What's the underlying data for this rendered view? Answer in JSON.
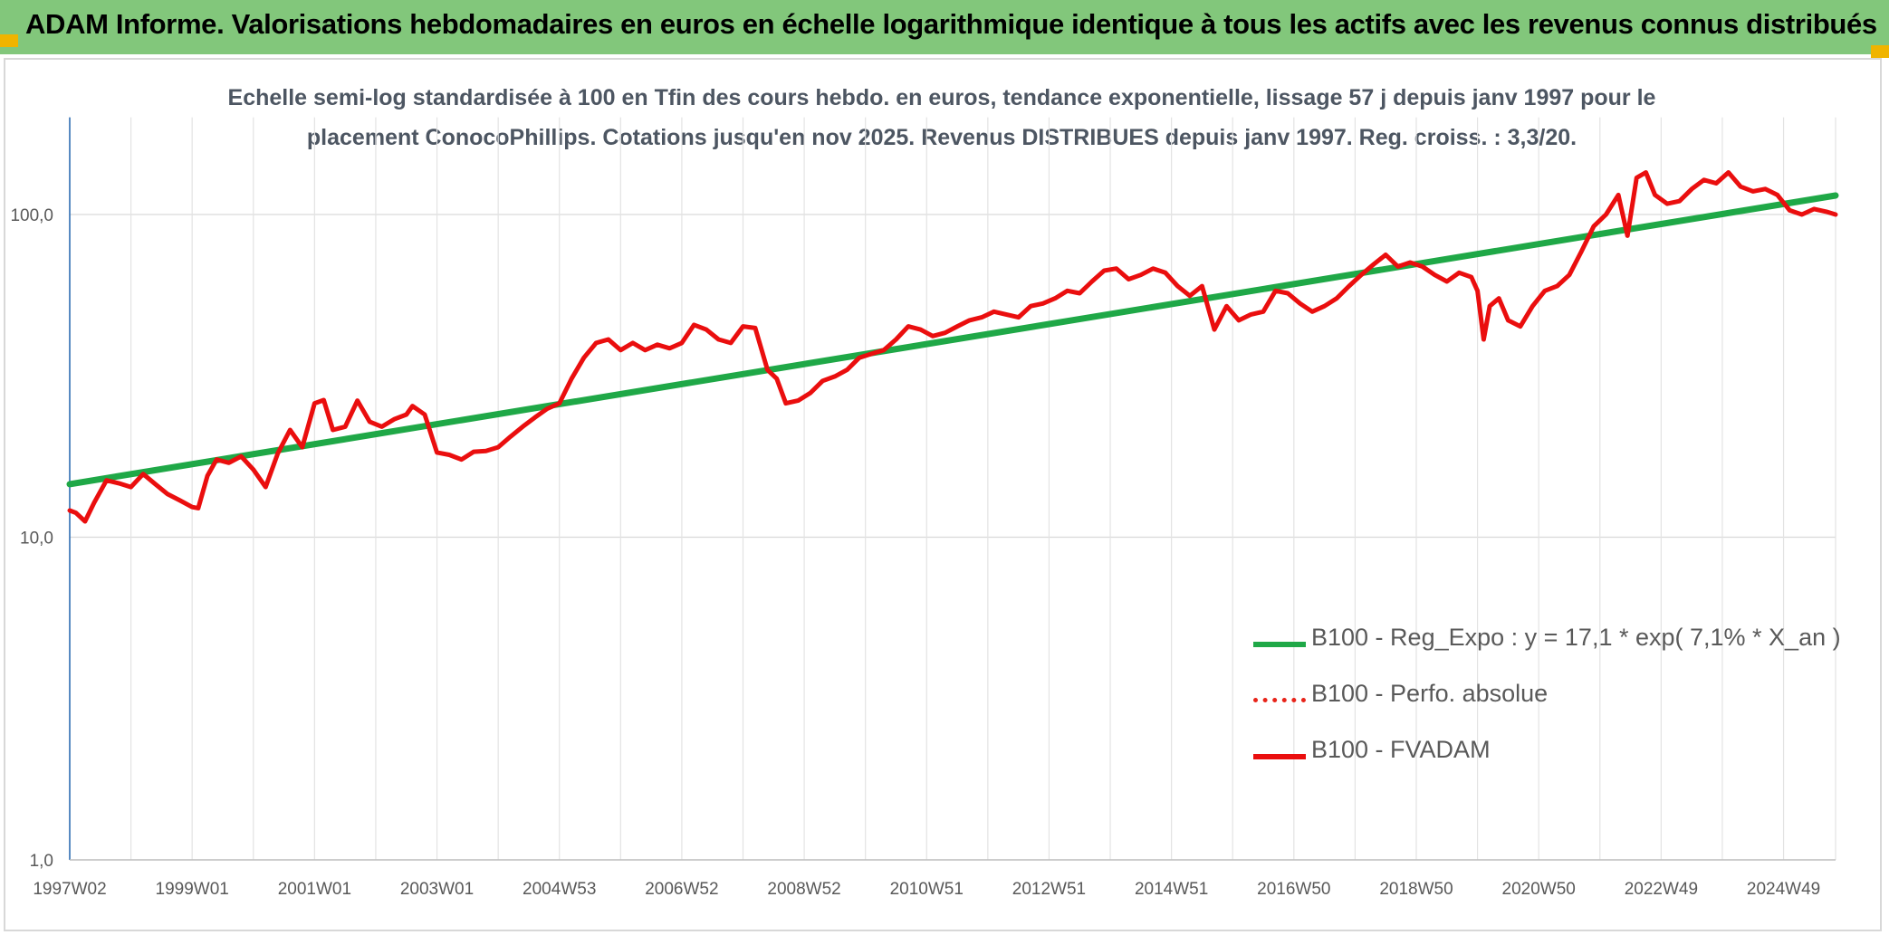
{
  "header": {
    "title": "ADAM Informe. Valorisations hebdomadaires en euros en échelle logarithmique identique à tous les actifs avec les revenus connus distribués",
    "background_color": "#82c77b"
  },
  "chart_data": {
    "type": "line",
    "title": "Echelle semi-log standardisée à 100 en Tfin des cours hebdo. en euros, tendance exponentielle, lissage 57 j depuis janv 1997 pour le placement ConocoPhillips. Cotations jusqu'en nov 2025. Revenus DISTRIBUES depuis janv 1997. Reg. croiss. : 3,3/20.",
    "title_lines": [
      "Echelle semi-log standardisée à 100 en Tfin des cours hebdo. en euros, tendance exponentielle, lissage 57 j depuis janv 1997 pour le",
      "placement ConocoPhillips. Cotations jusqu'en nov 2025. Revenus DISTRIBUES depuis janv 1997. Reg. croiss. : 3,3/20."
    ],
    "y_scale": "log",
    "ylim": [
      1,
      200
    ],
    "y_ticks": [
      {
        "value": 1,
        "label": "1,0"
      },
      {
        "value": 10,
        "label": "10,0"
      },
      {
        "value": 100,
        "label": "100,0"
      }
    ],
    "xlim": [
      1997.0,
      2025.85
    ],
    "x_ticks": [
      {
        "x": 1997.0,
        "label": "1997W02"
      },
      {
        "x": 1999.0,
        "label": "1999W01"
      },
      {
        "x": 2001.0,
        "label": "2001W01"
      },
      {
        "x": 2003.0,
        "label": "2003W01"
      },
      {
        "x": 2005.0,
        "label": "2004W53"
      },
      {
        "x": 2007.0,
        "label": "2006W52"
      },
      {
        "x": 2009.0,
        "label": "2008W52"
      },
      {
        "x": 2011.0,
        "label": "2010W51"
      },
      {
        "x": 2013.0,
        "label": "2012W51"
      },
      {
        "x": 2015.0,
        "label": "2014W51"
      },
      {
        "x": 2017.0,
        "label": "2016W50"
      },
      {
        "x": 2019.0,
        "label": "2018W50"
      },
      {
        "x": 2021.0,
        "label": "2020W50"
      },
      {
        "x": 2023.0,
        "label": "2022W49"
      },
      {
        "x": 2025.0,
        "label": "2024W49"
      }
    ],
    "grid": "vertical and horizontal",
    "legend_position": "bottom-right",
    "series": [
      {
        "name": "B100 - Reg_Expo : y = 17,1 * exp( 7,1% *  X_an )",
        "color": "#1fa847",
        "style": "solid",
        "x": [
          1997.0,
          2025.85
        ],
        "y": [
          14.6,
          114.5
        ]
      },
      {
        "name": "B100 - Perfo. absolue",
        "color": "#e8241a",
        "style": "dotted",
        "x": [],
        "y": []
      },
      {
        "name": "B100 - FVADAM",
        "color": "#ea0e0e",
        "style": "solid",
        "x": [
          1997.0,
          1997.1,
          1997.25,
          1997.4,
          1997.6,
          1997.8,
          1998.0,
          1998.2,
          1998.4,
          1998.6,
          1998.8,
          1999.0,
          1999.1,
          1999.25,
          1999.4,
          1999.6,
          1999.8,
          2000.0,
          2000.2,
          2000.4,
          2000.6,
          2000.8,
          2001.0,
          2001.15,
          2001.3,
          2001.5,
          2001.7,
          2001.9,
          2002.1,
          2002.3,
          2002.5,
          2002.6,
          2002.8,
          2003.0,
          2003.2,
          2003.4,
          2003.6,
          2003.8,
          2004.0,
          2004.2,
          2004.4,
          2004.6,
          2004.8,
          2005.0,
          2005.2,
          2005.4,
          2005.6,
          2005.8,
          2006.0,
          2006.2,
          2006.4,
          2006.6,
          2006.8,
          2007.0,
          2007.2,
          2007.4,
          2007.6,
          2007.8,
          2008.0,
          2008.2,
          2008.4,
          2008.55,
          2008.7,
          2008.9,
          2009.1,
          2009.3,
          2009.5,
          2009.7,
          2009.9,
          2010.1,
          2010.3,
          2010.5,
          2010.7,
          2010.9,
          2011.1,
          2011.3,
          2011.5,
          2011.7,
          2011.9,
          2012.1,
          2012.3,
          2012.5,
          2012.7,
          2012.9,
          2013.1,
          2013.3,
          2013.5,
          2013.7,
          2013.9,
          2014.1,
          2014.3,
          2014.5,
          2014.7,
          2014.9,
          2015.1,
          2015.3,
          2015.5,
          2015.7,
          2015.9,
          2016.1,
          2016.3,
          2016.5,
          2016.7,
          2016.9,
          2017.1,
          2017.3,
          2017.5,
          2017.7,
          2017.9,
          2018.1,
          2018.3,
          2018.5,
          2018.7,
          2018.9,
          2019.1,
          2019.3,
          2019.5,
          2019.7,
          2019.9,
          2020.0,
          2020.1,
          2020.2,
          2020.35,
          2020.5,
          2020.7,
          2020.9,
          2021.1,
          2021.3,
          2021.5,
          2021.7,
          2021.9,
          2022.1,
          2022.3,
          2022.45,
          2022.6,
          2022.75,
          2022.9,
          2023.1,
          2023.3,
          2023.5,
          2023.7,
          2023.9,
          2024.1,
          2024.3,
          2024.5,
          2024.7,
          2024.9,
          2025.1,
          2025.3,
          2025.5,
          2025.7,
          2025.85
        ],
        "y": [
          12.1,
          11.9,
          11.2,
          12.8,
          15.0,
          14.7,
          14.3,
          15.7,
          14.6,
          13.6,
          13.0,
          12.4,
          12.3,
          15.5,
          17.4,
          17.0,
          17.8,
          16.2,
          14.3,
          18.2,
          21.5,
          19.0,
          26.0,
          26.6,
          21.5,
          22.0,
          26.5,
          22.8,
          22.0,
          23.2,
          24.0,
          25.5,
          24.0,
          18.3,
          18.0,
          17.4,
          18.4,
          18.5,
          19.0,
          20.5,
          22.0,
          23.5,
          25.0,
          26.0,
          31.0,
          36.0,
          40.0,
          41.0,
          38.0,
          40.0,
          38.0,
          39.5,
          38.5,
          40.0,
          45.5,
          44.0,
          41.0,
          40.0,
          45.0,
          44.5,
          33.0,
          31.0,
          26.0,
          26.5,
          28.0,
          30.5,
          31.5,
          33.0,
          36.0,
          37.0,
          38.0,
          41.0,
          45.0,
          44.0,
          42.0,
          43.0,
          45.0,
          47.0,
          48.0,
          50.0,
          49.0,
          48.0,
          52.0,
          53.0,
          55.0,
          58.0,
          57.0,
          62.0,
          67.0,
          68.0,
          63.0,
          65.0,
          68.0,
          66.0,
          60.0,
          56.0,
          60.0,
          44.0,
          52.0,
          47.0,
          49.0,
          50.0,
          58.0,
          57.0,
          53.0,
          50.0,
          52.0,
          55.0,
          60.0,
          65.0,
          70.0,
          75.0,
          69.0,
          71.0,
          69.0,
          65.0,
          62.0,
          66.0,
          64.0,
          58.0,
          41.0,
          52.0,
          55.0,
          47.0,
          45.0,
          52.0,
          58.0,
          60.0,
          65.0,
          77.0,
          92.0,
          100.0,
          115.0,
          86.0,
          130.0,
          135.0,
          115.0,
          108.0,
          110.0,
          120.0,
          128.0,
          125.0,
          135.0,
          122.0,
          118.0,
          120.0,
          115.0,
          103.0,
          100.0,
          104.0,
          102.0,
          100.0
        ]
      }
    ]
  }
}
